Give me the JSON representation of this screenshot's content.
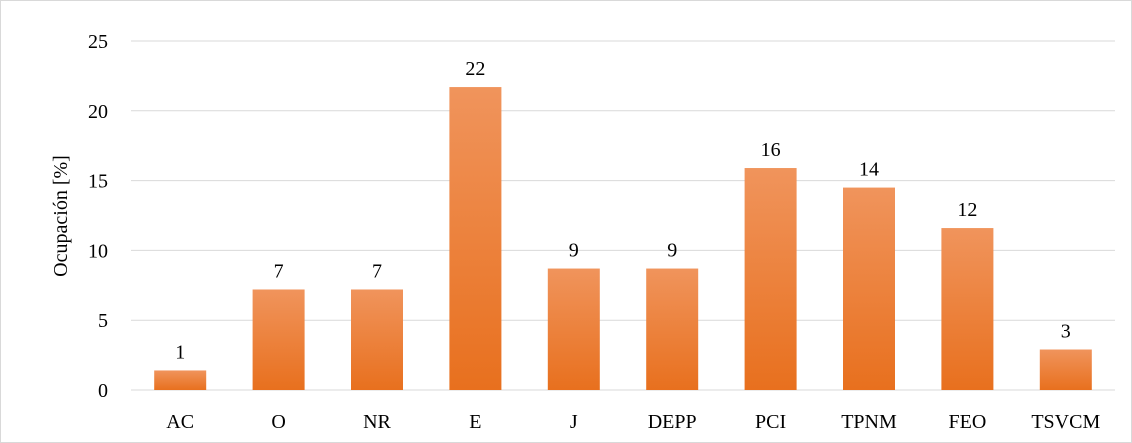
{
  "chart_data": {
    "type": "bar",
    "title": "",
    "xlabel": "",
    "ylabel": "Ocupación [%]",
    "categories": [
      "AC",
      "O",
      "NR",
      "E",
      "J",
      "DEPP",
      "PCI",
      "TPNM",
      "FEO",
      "TSVCM"
    ],
    "values": [
      1.4,
      7.2,
      7.2,
      21.7,
      8.7,
      8.7,
      15.9,
      14.5,
      11.6,
      2.9
    ],
    "data_labels": [
      "1",
      "7",
      "7",
      "22",
      "9",
      "9",
      "16",
      "14",
      "12",
      "3"
    ],
    "ylim": [
      0,
      25
    ],
    "yticks": [
      0,
      5,
      10,
      15,
      20,
      25
    ],
    "ytick_labels": [
      "0",
      "5",
      "10",
      "15",
      "20",
      "25"
    ],
    "grid": true,
    "legend": "none",
    "colors": {
      "bar_top": "#f0945c",
      "bar_bottom": "#e8701e",
      "gridline": "#d9d9d9",
      "text": "#000000"
    }
  }
}
